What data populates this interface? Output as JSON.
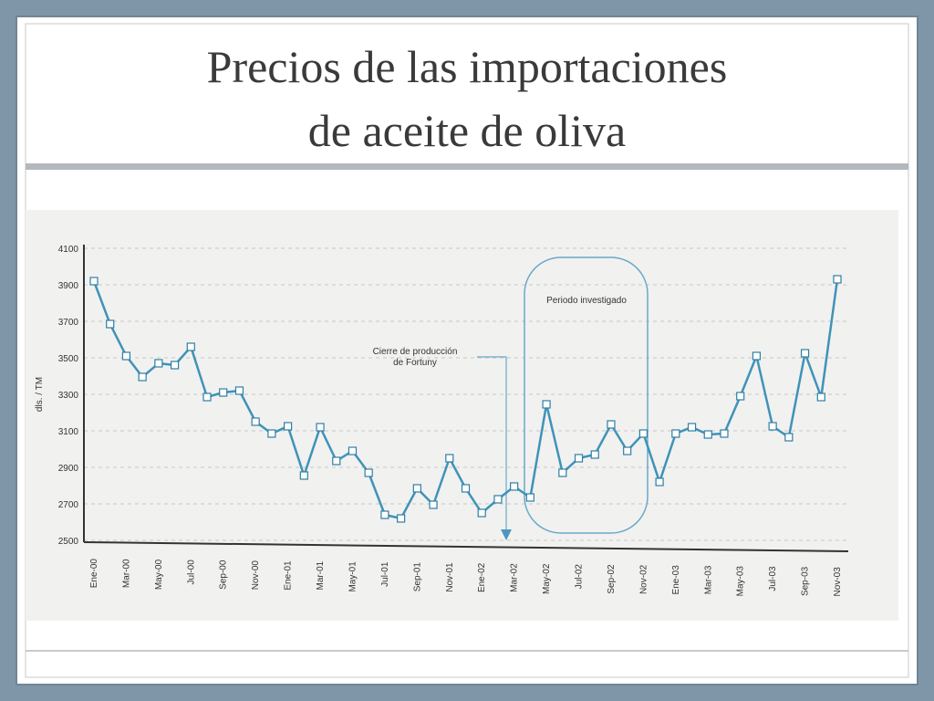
{
  "chart_data": {
    "type": "line",
    "title_lines": [
      "Precios de las importaciones",
      "de aceite de oliva"
    ],
    "ylabel": "dls. / TM",
    "annotations": [
      "Periodo investigado",
      "Cierre de producción",
      "de Fortuny"
    ],
    "categories": [
      "Ene-00",
      null,
      "Mar-00",
      null,
      "May-00",
      null,
      "Jul-00",
      null,
      "Sep-00",
      null,
      "Nov-00",
      null,
      "Ene-01",
      null,
      "Mar-01",
      null,
      "May-01",
      null,
      "Jul-01",
      null,
      "Sep-01",
      null,
      "Nov-01",
      null,
      "Ene-02",
      null,
      "Mar-02",
      null,
      "May-02",
      null,
      "Jul-02",
      null,
      "Sep-02",
      null,
      "Nov-02",
      null,
      "Ene-03",
      null,
      "Mar-03",
      null,
      "May-03",
      null,
      "Jul-03",
      null,
      "Sep-03",
      null,
      "Nov-03"
    ],
    "values": [
      3920,
      3685,
      3510,
      3395,
      3470,
      3460,
      3560,
      3285,
      3310,
      3320,
      3150,
      3085,
      3125,
      2855,
      3120,
      2935,
      2990,
      2870,
      2640,
      2620,
      2785,
      2695,
      2950,
      2785,
      2650,
      2725,
      2795,
      2735,
      3245,
      2870,
      2950,
      2970,
      3135,
      2990,
      3085,
      2820,
      3085,
      3120,
      3080,
      3085,
      3290,
      3510,
      3125,
      3065,
      3525,
      3285,
      3930
    ],
    "color": "#3f93b8",
    "ylim": [
      2500,
      4100
    ],
    "yticks": [
      2500,
      2700,
      2900,
      3100,
      3300,
      3500,
      3700,
      3900,
      4100
    ],
    "grid": true
  }
}
